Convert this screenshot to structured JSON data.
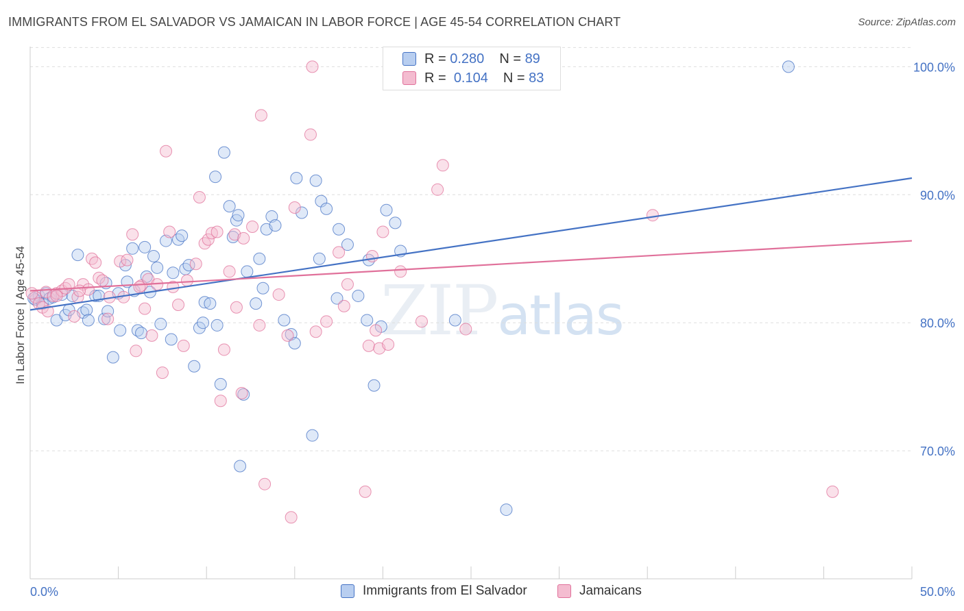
{
  "title": "IMMIGRANTS FROM EL SALVADOR VS JAMAICAN IN LABOR FORCE | AGE 45-54 CORRELATION CHART",
  "source": "Source: ZipAtlas.com",
  "watermark": {
    "zip": "ZIP",
    "atlas": "atlas"
  },
  "colors": {
    "blue": "#4472c4",
    "blue_fill": "#b8cef0",
    "pink": "#e0709a",
    "pink_fill": "#f4bcd0",
    "grid": "#dddddd",
    "tick_text": "#4472c4"
  },
  "legend_top": [
    {
      "r_label": "R =",
      "r_value": "0.280",
      "n_label": "N =",
      "n_value": "89"
    },
    {
      "r_label": "R =",
      "r_value": "0.104",
      "n_label": "N =",
      "n_value": "83"
    }
  ],
  "chart_data": {
    "type": "scatter",
    "title": "IMMIGRANTS FROM EL SALVADOR VS JAMAICAN IN LABOR FORCE | AGE 45-54 CORRELATION CHART",
    "xlabel": "",
    "ylabel": "In Labor Force | Age 45-54",
    "xlim": [
      0,
      50
    ],
    "ylim": [
      60,
      102
    ],
    "x_tick_labels": [
      "0.0%",
      "50.0%"
    ],
    "y_ticks": [
      70,
      80,
      90,
      100
    ],
    "y_tick_labels": [
      "70.0%",
      "80.0%",
      "90.0%",
      "100.0%"
    ],
    "grid": true,
    "legend_position": "bottom",
    "series": [
      {
        "name": "Immigrants from El Salvador",
        "color": "#4472c4",
        "trend": [
          [
            0,
            81.0
          ],
          [
            50,
            91.3
          ]
        ],
        "points": [
          [
            0.3,
            81.8
          ],
          [
            0.5,
            82.1
          ],
          [
            0.7,
            81.5
          ],
          [
            0.9,
            82.3
          ],
          [
            1.1,
            81.9
          ],
          [
            1.3,
            82.0
          ],
          [
            1.5,
            80.2
          ],
          [
            1.8,
            82.2
          ],
          [
            2.0,
            80.6
          ],
          [
            2.2,
            81.0
          ],
          [
            2.4,
            82.1
          ],
          [
            2.7,
            85.3
          ],
          [
            3.0,
            80.8
          ],
          [
            3.2,
            81.0
          ],
          [
            3.3,
            80.2
          ],
          [
            3.7,
            82.1
          ],
          [
            3.9,
            82.1
          ],
          [
            4.2,
            80.3
          ],
          [
            4.3,
            83.1
          ],
          [
            4.4,
            80.9
          ],
          [
            4.7,
            77.3
          ],
          [
            5.0,
            82.3
          ],
          [
            5.1,
            79.4
          ],
          [
            5.4,
            84.5
          ],
          [
            5.5,
            83.2
          ],
          [
            5.8,
            85.8
          ],
          [
            5.9,
            82.5
          ],
          [
            6.1,
            79.4
          ],
          [
            6.3,
            79.2
          ],
          [
            6.5,
            85.9
          ],
          [
            6.6,
            83.6
          ],
          [
            6.8,
            82.4
          ],
          [
            7.0,
            85.2
          ],
          [
            7.2,
            84.3
          ],
          [
            7.4,
            79.9
          ],
          [
            7.7,
            86.4
          ],
          [
            8.0,
            78.7
          ],
          [
            8.1,
            83.9
          ],
          [
            8.4,
            86.5
          ],
          [
            8.6,
            86.8
          ],
          [
            8.8,
            84.2
          ],
          [
            9.0,
            84.5
          ],
          [
            9.3,
            76.6
          ],
          [
            9.6,
            79.6
          ],
          [
            9.8,
            80.0
          ],
          [
            9.9,
            81.6
          ],
          [
            10.2,
            81.5
          ],
          [
            10.5,
            91.4
          ],
          [
            10.6,
            79.8
          ],
          [
            10.8,
            75.2
          ],
          [
            11.0,
            93.3
          ],
          [
            11.3,
            89.1
          ],
          [
            11.5,
            86.7
          ],
          [
            11.7,
            88.0
          ],
          [
            11.8,
            88.4
          ],
          [
            11.9,
            68.8
          ],
          [
            12.1,
            74.4
          ],
          [
            12.3,
            84.0
          ],
          [
            12.8,
            81.5
          ],
          [
            13.0,
            85.0
          ],
          [
            13.2,
            82.7
          ],
          [
            13.4,
            87.3
          ],
          [
            13.7,
            88.3
          ],
          [
            13.9,
            87.6
          ],
          [
            14.4,
            80.2
          ],
          [
            14.8,
            79.1
          ],
          [
            15.0,
            78.4
          ],
          [
            15.1,
            91.3
          ],
          [
            15.4,
            88.6
          ],
          [
            16.0,
            71.2
          ],
          [
            16.2,
            91.1
          ],
          [
            16.4,
            85.0
          ],
          [
            16.5,
            89.5
          ],
          [
            16.8,
            88.9
          ],
          [
            17.4,
            81.9
          ],
          [
            17.5,
            87.3
          ],
          [
            18.0,
            86.1
          ],
          [
            18.6,
            82.1
          ],
          [
            19.1,
            80.2
          ],
          [
            19.2,
            84.9
          ],
          [
            19.5,
            75.1
          ],
          [
            19.9,
            79.7
          ],
          [
            20.2,
            88.8
          ],
          [
            20.7,
            87.8
          ],
          [
            21.0,
            85.6
          ],
          [
            24.1,
            80.2
          ],
          [
            27.0,
            65.4
          ],
          [
            43.0,
            100.0
          ],
          [
            0.2,
            81.9
          ]
        ]
      },
      {
        "name": "Jamaicans",
        "color": "#e0709a",
        "trend": [
          [
            0,
            82.5
          ],
          [
            50,
            86.4
          ]
        ],
        "points": [
          [
            0.3,
            82.0
          ],
          [
            0.5,
            81.5
          ],
          [
            0.7,
            81.2
          ],
          [
            0.9,
            82.4
          ],
          [
            1.0,
            80.9
          ],
          [
            1.3,
            82.1
          ],
          [
            1.5,
            82.3
          ],
          [
            1.8,
            82.5
          ],
          [
            2.0,
            82.7
          ],
          [
            2.2,
            83.0
          ],
          [
            2.5,
            80.5
          ],
          [
            2.7,
            82.0
          ],
          [
            3.0,
            83.0
          ],
          [
            3.3,
            82.6
          ],
          [
            3.5,
            85.0
          ],
          [
            3.7,
            84.7
          ],
          [
            3.9,
            83.5
          ],
          [
            4.1,
            83.3
          ],
          [
            4.4,
            80.3
          ],
          [
            5.1,
            84.8
          ],
          [
            5.3,
            82.0
          ],
          [
            5.5,
            84.9
          ],
          [
            5.8,
            86.9
          ],
          [
            6.0,
            77.8
          ],
          [
            6.3,
            82.9
          ],
          [
            6.5,
            81.1
          ],
          [
            6.7,
            83.4
          ],
          [
            6.9,
            79.0
          ],
          [
            7.2,
            83.0
          ],
          [
            7.5,
            76.1
          ],
          [
            7.7,
            93.4
          ],
          [
            7.9,
            87.1
          ],
          [
            8.1,
            82.8
          ],
          [
            8.4,
            81.4
          ],
          [
            8.7,
            78.2
          ],
          [
            8.9,
            83.3
          ],
          [
            9.4,
            84.6
          ],
          [
            9.6,
            89.8
          ],
          [
            9.9,
            86.2
          ],
          [
            10.1,
            86.5
          ],
          [
            10.3,
            87.0
          ],
          [
            10.6,
            87.1
          ],
          [
            10.8,
            73.9
          ],
          [
            11.0,
            77.9
          ],
          [
            11.3,
            84.0
          ],
          [
            11.6,
            86.9
          ],
          [
            11.7,
            81.2
          ],
          [
            12.0,
            74.5
          ],
          [
            12.1,
            86.6
          ],
          [
            12.6,
            87.5
          ],
          [
            13.0,
            79.8
          ],
          [
            13.1,
            96.2
          ],
          [
            13.3,
            67.4
          ],
          [
            14.1,
            82.2
          ],
          [
            14.6,
            79.0
          ],
          [
            14.8,
            64.8
          ],
          [
            15.0,
            89.0
          ],
          [
            15.9,
            94.7
          ],
          [
            16.0,
            100.0
          ],
          [
            16.2,
            79.3
          ],
          [
            16.8,
            80.1
          ],
          [
            17.5,
            85.5
          ],
          [
            17.8,
            81.3
          ],
          [
            18.0,
            83.0
          ],
          [
            19.0,
            66.8
          ],
          [
            19.2,
            78.2
          ],
          [
            19.4,
            85.2
          ],
          [
            19.6,
            79.4
          ],
          [
            19.8,
            78.0
          ],
          [
            20.0,
            87.1
          ],
          [
            20.3,
            78.3
          ],
          [
            21.0,
            84.0
          ],
          [
            22.2,
            80.1
          ],
          [
            23.1,
            90.4
          ],
          [
            23.4,
            92.3
          ],
          [
            24.7,
            79.5
          ],
          [
            35.3,
            88.4
          ],
          [
            45.5,
            66.8
          ],
          [
            0.1,
            82.3
          ],
          [
            1.5,
            82.1
          ],
          [
            2.8,
            82.5
          ],
          [
            4.5,
            82.0
          ],
          [
            6.2,
            82.8
          ]
        ]
      }
    ]
  }
}
